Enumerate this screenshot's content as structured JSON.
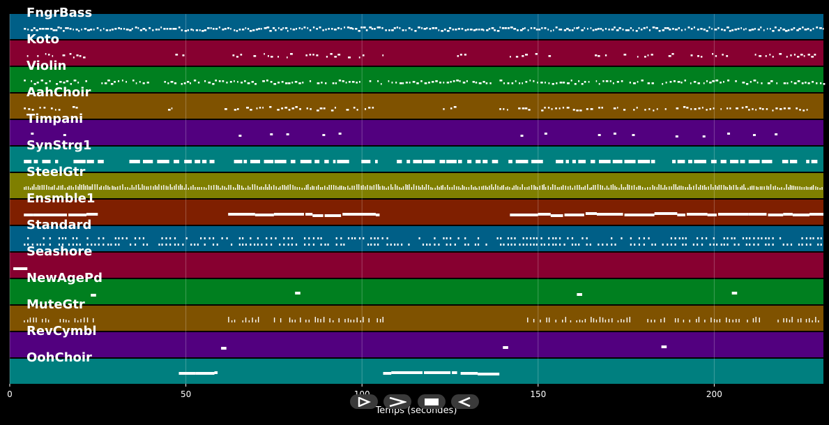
{
  "chart_data": {
    "type": "piano-roll",
    "xlabel": "Temps (secondes)",
    "xlim": [
      0,
      231
    ],
    "x_ticks": [
      0,
      50,
      100,
      150,
      200
    ],
    "grid": true,
    "tracks": [
      {
        "name": "FngrBass",
        "color": "#005f87",
        "density": 1.0,
        "segments": [
          [
            4,
            231
          ]
        ],
        "style": "dense-notes"
      },
      {
        "name": "Koto",
        "color": "#870030",
        "density": 0.6,
        "segments": [
          [
            4,
            22
          ],
          [
            47,
            50
          ],
          [
            61,
            81
          ],
          [
            84,
            101
          ],
          [
            104,
            106
          ],
          [
            127,
            130
          ],
          [
            141,
            153
          ],
          [
            165,
            184
          ],
          [
            187,
            205
          ],
          [
            208,
            230
          ]
        ],
        "style": "notes"
      },
      {
        "name": "Violin",
        "color": "#007f1f",
        "density": 0.85,
        "segments": [
          [
            4,
            22
          ],
          [
            26,
            231
          ]
        ],
        "style": "notes"
      },
      {
        "name": "AahChoir",
        "color": "#7f5200",
        "density": 0.7,
        "segments": [
          [
            4,
            23
          ],
          [
            43,
            47
          ],
          [
            60,
            103
          ],
          [
            123,
            127
          ],
          [
            139,
            184
          ],
          [
            186,
            227
          ]
        ],
        "style": "notes"
      },
      {
        "name": "Timpani",
        "color": "#52007f",
        "density": 0.15,
        "segments": [
          [
            6,
            20
          ],
          [
            65,
            100
          ],
          [
            145,
            160
          ],
          [
            167,
            181
          ],
          [
            189,
            204
          ],
          [
            211,
            226
          ]
        ],
        "style": "sparse"
      },
      {
        "name": "SynStrg1",
        "color": "#007f7f",
        "density": 0.9,
        "segments": [
          [
            4,
            231
          ]
        ],
        "style": "blocks"
      },
      {
        "name": "SteelGtr",
        "color": "#7f7f00",
        "density": 1.0,
        "segments": [
          [
            4,
            231
          ]
        ],
        "style": "ticks"
      },
      {
        "name": "Ensmble1",
        "color": "#7f1f00",
        "density": 1.0,
        "segments": [
          [
            4,
            25
          ],
          [
            62,
            105
          ],
          [
            142,
            231
          ]
        ],
        "style": "long"
      },
      {
        "name": "Standard",
        "color": "#005f87",
        "density": 0.9,
        "segments": [
          [
            4,
            231
          ]
        ],
        "style": "drums"
      },
      {
        "name": "Seashore",
        "color": "#870030",
        "density": 1.0,
        "segments": [
          [
            1,
            5
          ]
        ],
        "style": "long"
      },
      {
        "name": "NewAgePd",
        "color": "#007f1f",
        "density": 1.0,
        "segments": [
          [
            23,
            24.5
          ],
          [
            81,
            82.5
          ],
          [
            161,
            162.5
          ],
          [
            205,
            206.5
          ]
        ],
        "style": "long"
      },
      {
        "name": "MuteGtr",
        "color": "#7f5200",
        "density": 0.7,
        "segments": [
          [
            4,
            25
          ],
          [
            62,
            71
          ],
          [
            75,
            106
          ],
          [
            146,
            178
          ],
          [
            181,
            213
          ],
          [
            218,
            231
          ]
        ],
        "style": "ticks-sparse"
      },
      {
        "name": "RevCymbl",
        "color": "#52007f",
        "density": 1.0,
        "segments": [
          [
            60,
            61.5
          ],
          [
            140,
            141.5
          ],
          [
            185,
            186.5
          ]
        ],
        "style": "long"
      },
      {
        "name": "OohChoir",
        "color": "#007f7f",
        "density": 0.8,
        "segments": [
          [
            48,
            59
          ],
          [
            106,
            127
          ],
          [
            128,
            139
          ]
        ],
        "style": "long"
      }
    ]
  },
  "controls": [
    {
      "name": "play",
      "icon": "play-icon"
    },
    {
      "name": "forward",
      "icon": "forward-icon"
    },
    {
      "name": "stop",
      "icon": "stop-icon"
    },
    {
      "name": "back",
      "icon": "back-icon"
    }
  ]
}
